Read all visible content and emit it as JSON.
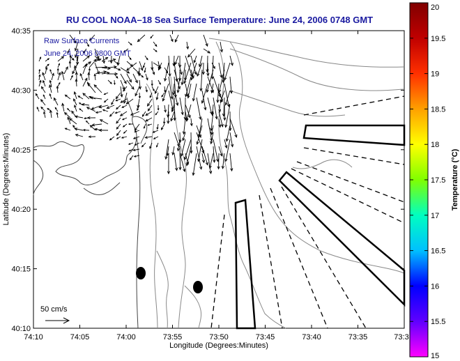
{
  "title": "RU COOL  NOAA–18  Sea Surface Temperature:  June 24, 2006 0748 GMT",
  "inset": {
    "line1": "Raw Surface Currents",
    "line2": "June 24, 2006 0800 GMT"
  },
  "axes": {
    "xlabel": "Longitude (Degrees:Minutes)",
    "ylabel": "Latitude (Degrees:Minutes)",
    "x_ticks": [
      "74:10",
      "74:05",
      "74:00",
      "73:55",
      "73:50",
      "73:45",
      "73:40",
      "73:35",
      "73:3"
    ],
    "y_ticks": [
      "40:35",
      "40:30",
      "40:25",
      "40:20",
      "40:15",
      "40:10"
    ]
  },
  "scale_label": "50 cm/s",
  "colorbar": {
    "label": "Temperature (°C)",
    "ticks": [
      "20",
      "19.5",
      "19",
      "18.5",
      "18",
      "17.5",
      "17",
      "16.5",
      "16",
      "15.5",
      "15"
    ],
    "range": [
      15,
      20
    ],
    "colors": [
      "#ff00ff",
      "#6000ff",
      "#0000ff",
      "#00c0ff",
      "#00ffc0",
      "#80ff00",
      "#ffff00",
      "#ffa000",
      "#ff3000",
      "#c00000",
      "#800000"
    ]
  }
}
